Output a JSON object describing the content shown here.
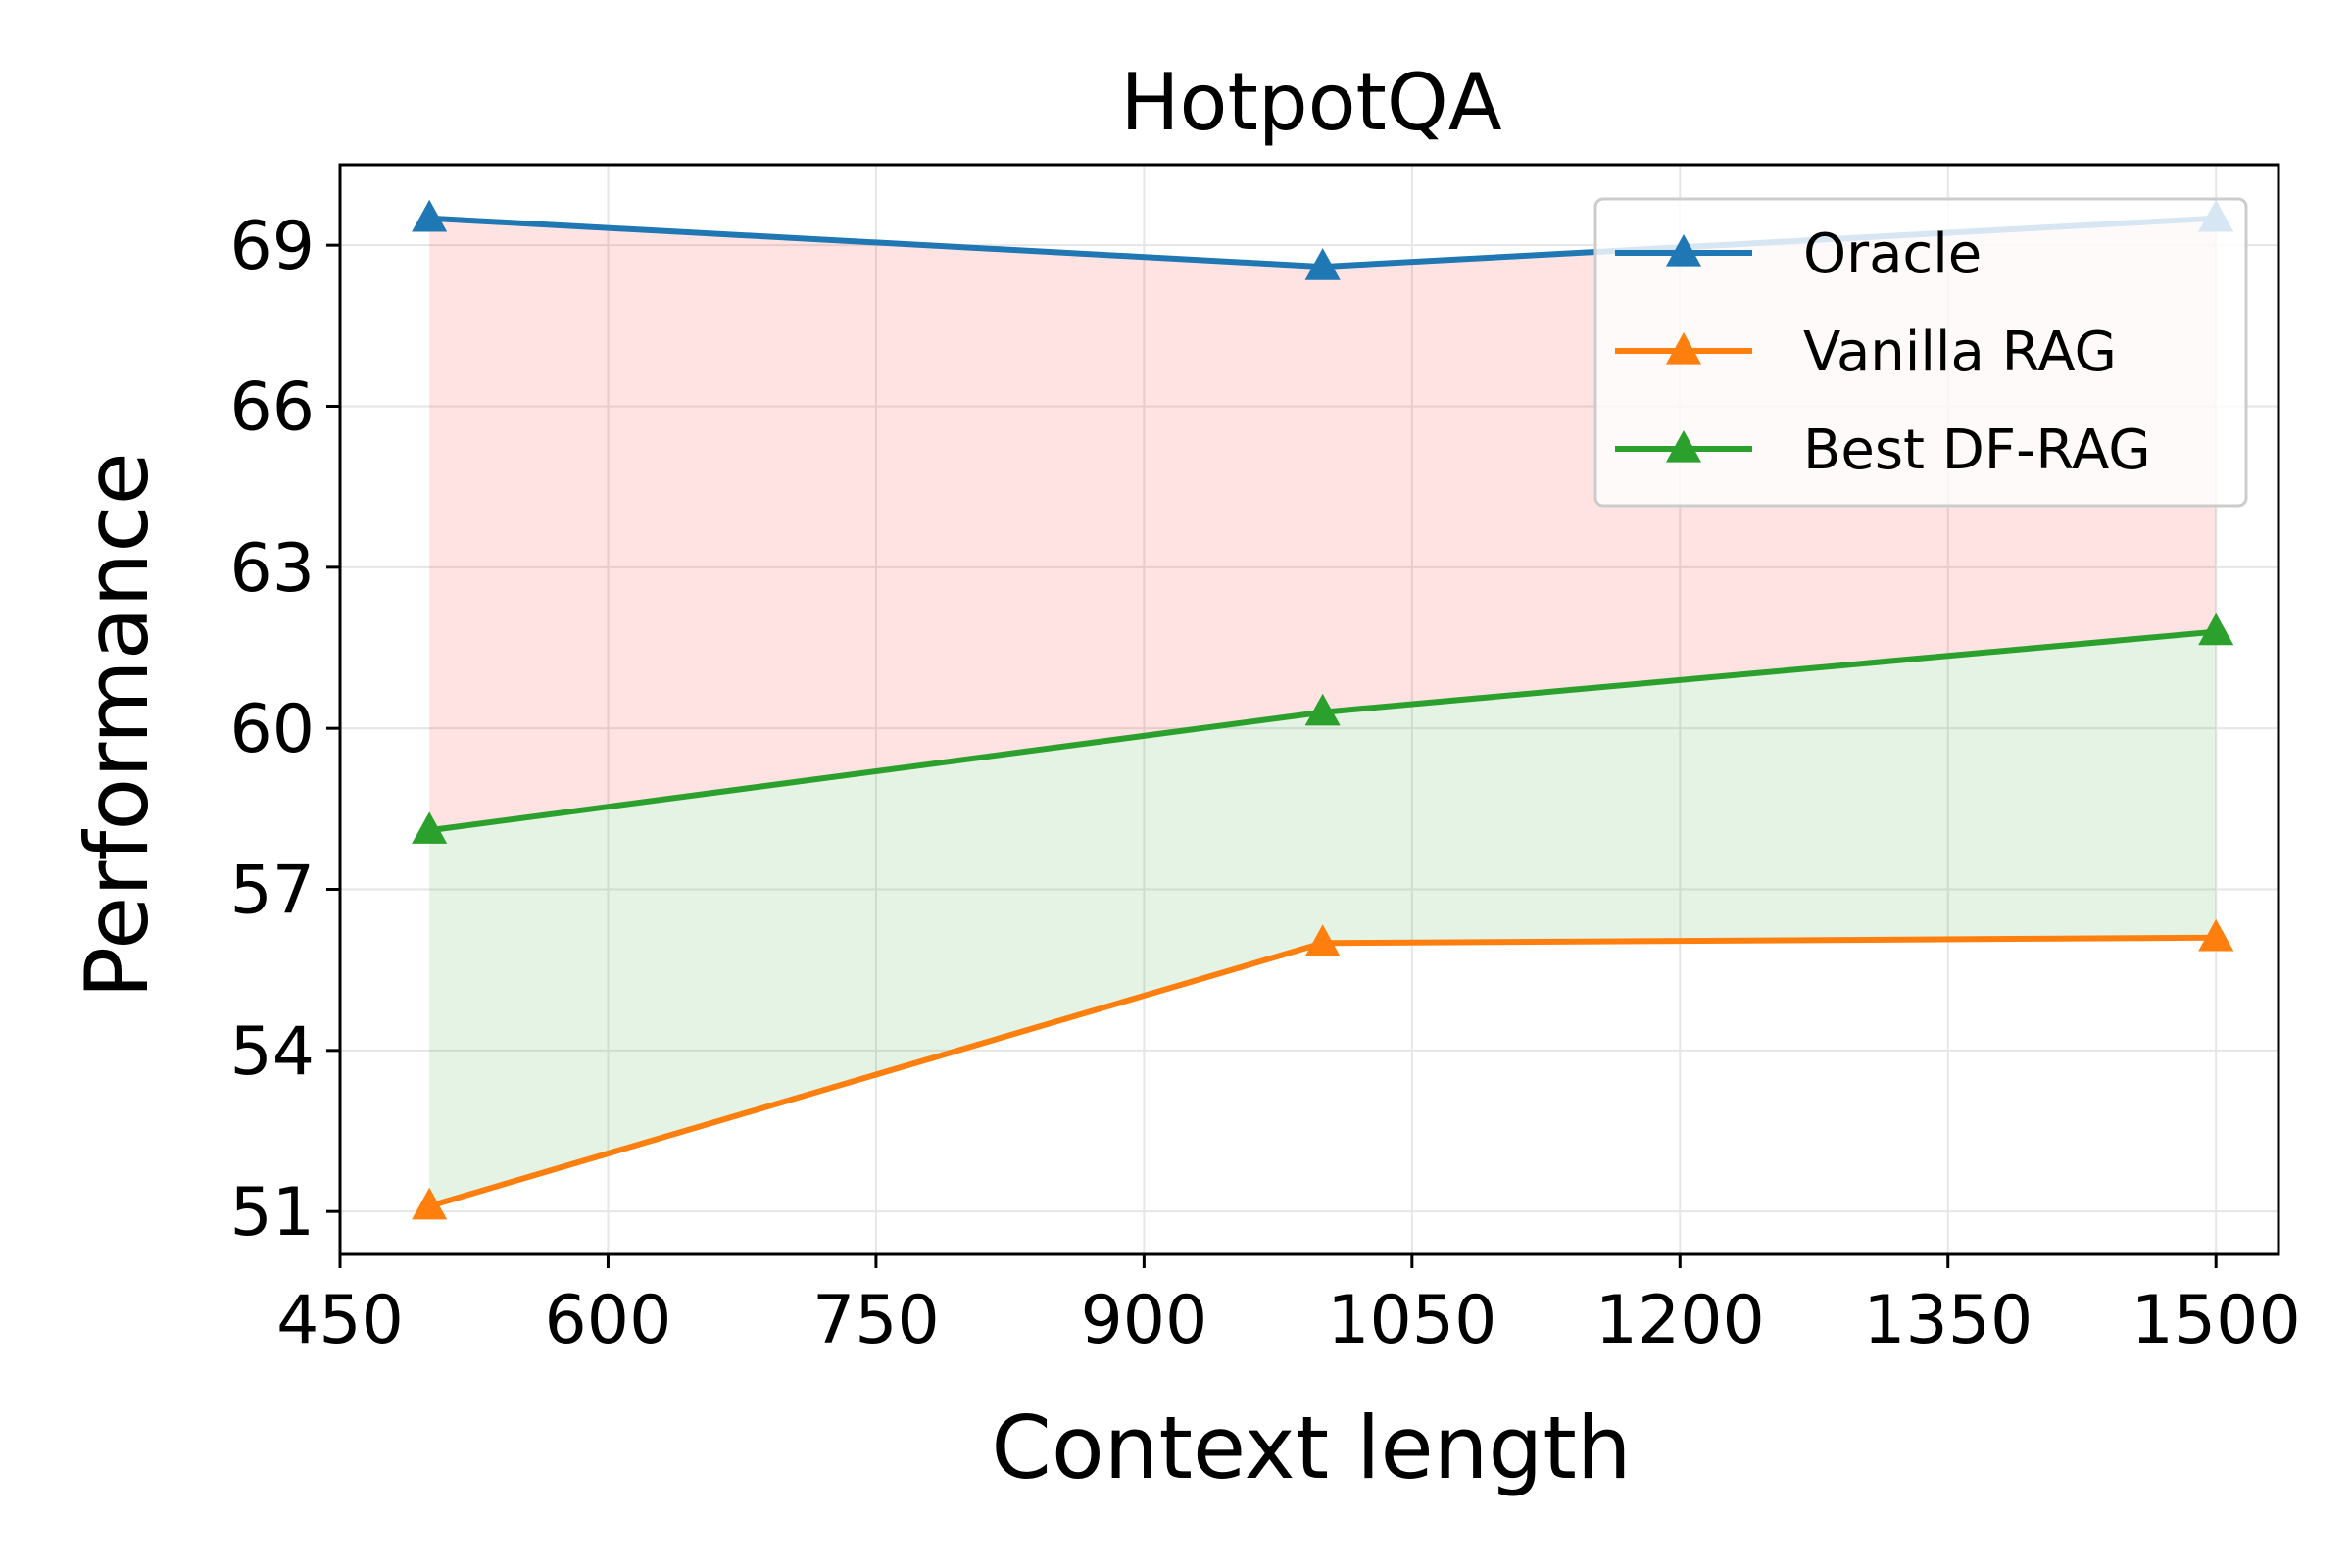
{
  "chart_data": {
    "type": "line",
    "title": "HotpotQA",
    "xlabel": "Context length",
    "ylabel": "Performance",
    "xlim": [
      450,
      1535
    ],
    "ylim": [
      50.2,
      70.5
    ],
    "xticks": [
      450,
      600,
      750,
      900,
      1050,
      1200,
      1350,
      1500
    ],
    "yticks": [
      51,
      54,
      57,
      60,
      63,
      66,
      69
    ],
    "grid": true,
    "legend_position": "top-right",
    "x": [
      500,
      1000,
      1500
    ],
    "series": [
      {
        "name": "Oracle",
        "values": [
          69.5,
          68.6,
          69.5
        ],
        "color": "#1f77b4",
        "marker": "triangle"
      },
      {
        "name": "Vanilla RAG",
        "values": [
          51.1,
          56.0,
          56.1
        ],
        "color": "#ff7f0e",
        "marker": "triangle"
      },
      {
        "name": "Best DF-RAG",
        "values": [
          58.1,
          60.3,
          61.8
        ],
        "color": "#2ca02c",
        "marker": "triangle"
      }
    ],
    "fills": [
      {
        "between": [
          "Best DF-RAG",
          "Oracle"
        ],
        "color": "#ff0000",
        "opacity": 0.11
      },
      {
        "between": [
          "Vanilla RAG",
          "Best DF-RAG"
        ],
        "color": "#2ca02c",
        "opacity": 0.13
      }
    ]
  }
}
